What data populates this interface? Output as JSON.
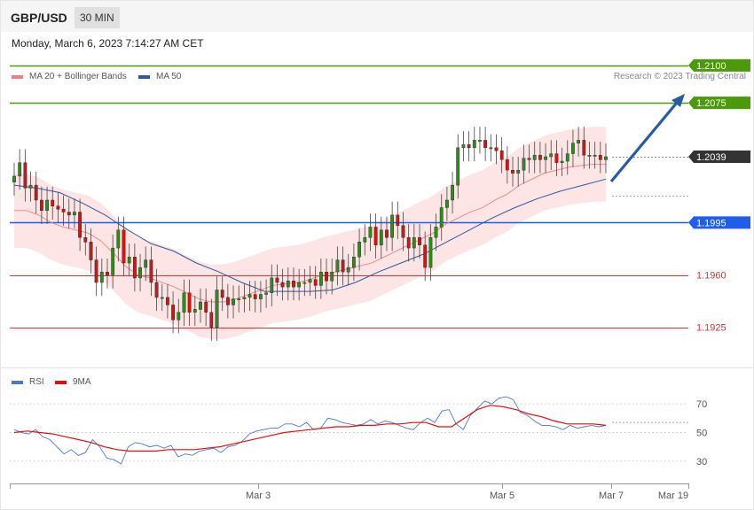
{
  "header": {
    "symbol": "GBP/USD",
    "timeframe": "30 MIN"
  },
  "timestamp": "Monday, March 6, 2023 7:14:27 AM CET",
  "legend": {
    "ma20": {
      "label": "MA 20 + Bollinger Bands",
      "color": "#f08080"
    },
    "ma50": {
      "label": "MA 50",
      "color": "#2c5aa0"
    }
  },
  "credit": "Research © 2023 Trading Central",
  "rsi_legend": {
    "rsi": {
      "label": "RSI",
      "color": "#4a78d0"
    },
    "ma9": {
      "label": "9MA",
      "color": "#dd1111"
    }
  },
  "chart_data": [
    {
      "type": "candlestick",
      "ylim": [
        1.19,
        1.212
      ],
      "levels": [
        {
          "value": 1.21,
          "label": "1.2100",
          "color": "#4a9a0a",
          "kind": "resistance"
        },
        {
          "value": 1.2075,
          "label": "1.2075",
          "color": "#4a9a0a",
          "kind": "resistance"
        },
        {
          "value": 1.2039,
          "label": "1.2039",
          "color": "#333333",
          "kind": "last"
        },
        {
          "value": 1.1995,
          "label": "1.1995",
          "color": "#1f5eea",
          "kind": "pivot"
        },
        {
          "value": 1.196,
          "label": "1.1960",
          "color": "#e03030",
          "kind": "support"
        },
        {
          "value": 1.1925,
          "label": "1.1925",
          "color": "#e03030",
          "kind": "support"
        }
      ],
      "series": [
        {
          "name": "GBP/USD 30 MIN",
          "close": [
            1.2026,
            1.2035,
            1.2018,
            1.202,
            1.201,
            1.2003,
            1.201,
            1.2006,
            1.2004,
            1.2002,
            1.2,
            1.2002,
            1.1985,
            1.1982,
            1.197,
            1.1955,
            1.1962,
            1.196,
            1.1978,
            1.199,
            1.1968,
            1.1972,
            1.1958,
            1.1965,
            1.197,
            1.1955,
            1.1945,
            1.1945,
            1.194,
            1.193,
            1.1935,
            1.1948,
            1.1935,
            1.1937,
            1.1942,
            1.1935,
            1.1925,
            1.195,
            1.1945,
            1.194,
            1.1944,
            1.1944,
            1.1945,
            1.1947,
            1.1944,
            1.1947,
            1.1948,
            1.1958,
            1.1955,
            1.1952,
            1.1956,
            1.1952,
            1.1955,
            1.1955,
            1.1957,
            1.1953,
            1.1962,
            1.1956,
            1.1962,
            1.197,
            1.1962,
            1.1965,
            1.1972,
            1.1982,
            1.1985,
            1.1992,
            1.198,
            1.199,
            1.1985,
            1.2,
            1.1993,
            1.1985,
            1.1978,
            1.1985,
            1.198,
            1.1965,
            1.1985,
            1.1992,
            1.2005,
            1.201,
            1.202,
            1.2045,
            1.2047,
            1.2045,
            1.205,
            1.205,
            1.2045,
            1.2045,
            1.2043,
            1.2037,
            1.203,
            1.2028,
            1.203,
            1.2038,
            1.2037,
            1.204,
            1.2037,
            1.2039,
            1.2041,
            1.2035,
            1.2036,
            1.2041,
            1.2048,
            1.205,
            1.204,
            1.204,
            1.204,
            1.2037,
            1.2039
          ]
        },
        {
          "name": "MA 20",
          "values": [
            1.2003,
            1.2003,
            1.2,
            1.1995,
            1.1992,
            1.199,
            1.1988,
            1.1983,
            1.1975,
            1.1966,
            1.196,
            1.1958,
            1.1955,
            1.1952,
            1.1948,
            1.1944,
            1.1942,
            1.1942,
            1.1944,
            1.1947,
            1.195,
            1.1953,
            1.1954,
            1.1955,
            1.1957,
            1.196,
            1.1962,
            1.1964,
            1.1966,
            1.1968,
            1.1972,
            1.1976,
            1.198,
            1.1984,
            1.1988,
            1.1994,
            1.1998,
            1.2002,
            1.2005,
            1.201,
            1.2014,
            1.202,
            1.2024,
            1.2028,
            1.203,
            1.2032,
            1.2033,
            1.2034,
            1.2034
          ]
        },
        {
          "name": "MA 50",
          "values": [
            1.202,
            1.2018,
            1.2015,
            1.2008,
            1.2,
            1.199,
            1.1981,
            1.1976,
            1.1968,
            1.1962,
            1.1955,
            1.1949,
            1.1949,
            1.1949,
            1.195,
            1.1955,
            1.1962,
            1.1968,
            1.1974,
            1.1982,
            1.199,
            1.1998,
            1.2005,
            1.2011,
            1.2016,
            1.202,
            1.2024
          ]
        }
      ]
    },
    {
      "type": "line",
      "yticks": [
        30,
        50,
        70
      ],
      "ylim": [
        15,
        80
      ],
      "xticks": [
        "Mar 3",
        "Mar 5",
        "Mar 7",
        "Mar 19"
      ],
      "series": [
        {
          "name": "RSI",
          "values": [
            52,
            50,
            49,
            52,
            47,
            45,
            40,
            35,
            38,
            34,
            36,
            45,
            40,
            32,
            31,
            28,
            40,
            43,
            42,
            40,
            41,
            39,
            41,
            33,
            35,
            34,
            37,
            38,
            39,
            36,
            40,
            41,
            44,
            49,
            51,
            52,
            53,
            53,
            56,
            56,
            54,
            57,
            52,
            53,
            60,
            59,
            57,
            56,
            55,
            56,
            59,
            56,
            58,
            57,
            55,
            53,
            52,
            57,
            60,
            57,
            65,
            66,
            56,
            52,
            62,
            67,
            72,
            70,
            74,
            75,
            73,
            64,
            62,
            58,
            55,
            55,
            54,
            52,
            55,
            53,
            54,
            55,
            54,
            55
          ]
        },
        {
          "name": "9MA",
          "values": [
            50,
            51,
            50,
            49,
            47,
            45,
            43,
            40,
            38,
            37,
            37,
            37,
            38,
            38,
            38,
            39,
            40,
            42,
            44,
            46,
            48,
            50,
            51,
            52,
            53,
            54,
            54,
            55,
            55,
            56,
            56,
            57,
            57,
            54,
            54,
            60,
            66,
            69,
            68,
            66,
            63,
            61,
            58,
            56,
            56,
            56,
            55
          ]
        }
      ]
    }
  ]
}
